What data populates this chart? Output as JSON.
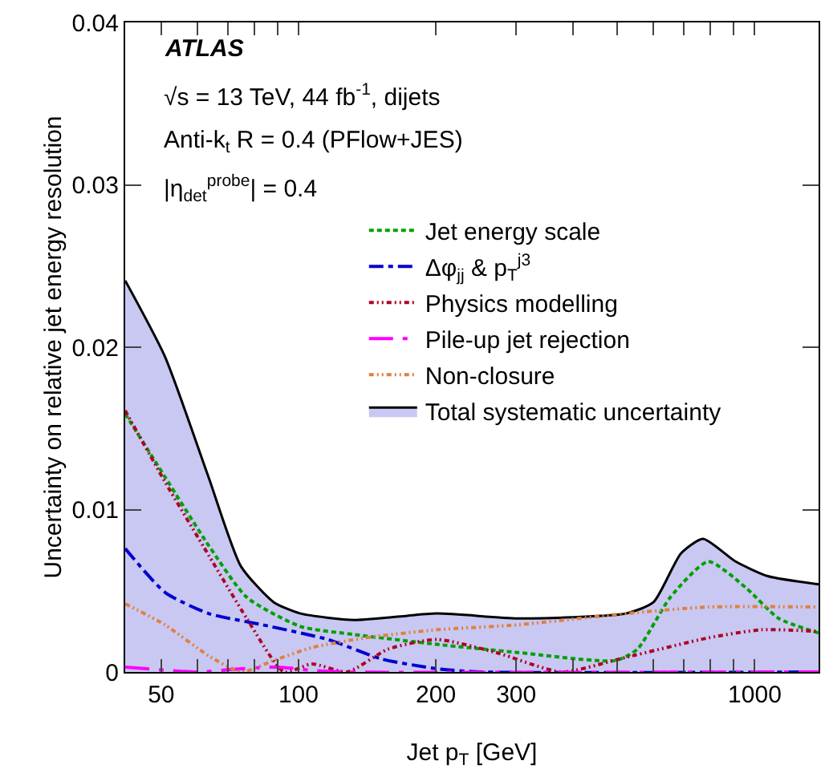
{
  "chart_data": {
    "type": "line",
    "xlabel": "Jet p$_{T}$ [GeV]",
    "ylabel": "Uncertainty on relative jet energy resolution",
    "annotations": [
      "ATLAS",
      "√s = 13 TeV, 44 fb$^{-1}$, dijets",
      "Anti-k$_{t}$ R = 0.4 (PFlow+JES)",
      "|η$_{det}$$^{probe}$| = 0.4"
    ],
    "log": "x",
    "xlim": [
      41.7,
      1380
    ],
    "xticks": [
      50,
      {
        "value": 60,
        "label": null
      },
      {
        "value": 70,
        "label": null
      },
      {
        "value": 80,
        "label": null
      },
      {
        "value": 90,
        "label": null
      },
      100,
      200,
      300,
      {
        "value": 400,
        "label": null
      },
      {
        "value": 500,
        "label": null
      },
      {
        "value": 600,
        "label": null
      },
      {
        "value": 700,
        "label": null
      },
      {
        "value": 800,
        "label": null
      },
      {
        "value": 900,
        "label": null
      },
      1000
    ],
    "ylim": [
      0,
      0.04
    ],
    "yticks": [
      0,
      0.01,
      0.02,
      0.03,
      0.04
    ],
    "grid": false,
    "legend": "top right",
    "marker": "none",
    "series": [
      {
        "name": "Total systematic uncertainty",
        "type": "area",
        "color": "#c8c8f2",
        "line_style": "solid",
        "x": [
          41.7,
          51,
          63.5,
          74.8,
          88.2,
          101,
          133,
          201,
          302,
          522,
          600,
          689,
          770,
          908,
          1068,
          1380
        ],
        "values": [
          0.0241,
          0.0194,
          0.012,
          0.0065,
          0.0043,
          0.0036,
          0.0032,
          0.0036,
          0.0033,
          0.0036,
          0.0043,
          0.0073,
          0.0082,
          0.0068,
          0.0059,
          0.0054
        ]
      },
      {
        "name": "Jet energy scale",
        "color": "#00a000",
        "line_style": "dotted",
        "x": [
          41.7,
          51,
          63.5,
          77,
          101,
          133,
          201,
          302,
          495,
          553,
          653,
          791,
          955,
          1128,
          1380
        ],
        "values": [
          0.0159,
          0.012,
          0.0078,
          0.0046,
          0.0028,
          0.0023,
          0.0017,
          0.0012,
          0.0007,
          0.0014,
          0.0046,
          0.0068,
          0.0052,
          0.0033,
          0.0024
        ]
      },
      {
        "name": "Δφ$_{jj}$ & p$_{T}$$^{j3}$",
        "color": "#0000d0",
        "line_style": "dashdot",
        "x": [
          41.7,
          51,
          63.5,
          83.5,
          116,
          152,
          201,
          250,
          1380
        ],
        "values": [
          0.0076,
          0.0049,
          0.0036,
          0.0029,
          0.002,
          0.0008,
          0.0002,
          0,
          0
        ]
      },
      {
        "name": "Physics modelling",
        "color": "#b00020",
        "line_style": "dashdotdot",
        "x": [
          41.7,
          51,
          63.5,
          77,
          93,
          107,
          128,
          157,
          201,
          271,
          377,
          522,
          791,
          1035,
          1380
        ],
        "values": [
          0.0161,
          0.0117,
          0.0072,
          0.0033,
          0,
          0.0005,
          0,
          0.0014,
          0.002,
          0.0012,
          0,
          0.0009,
          0.0021,
          0.0026,
          0.0025
        ]
      },
      {
        "name": "Pile-up jet rejection",
        "color": "#ff00ff",
        "line_style": "longdashdot",
        "x": [
          41.7,
          60,
          75,
          90,
          107,
          130,
          1380
        ],
        "values": [
          0.0003,
          0,
          0.0002,
          0.0003,
          0.0001,
          0,
          0
        ]
      },
      {
        "name": "Non-closure",
        "color": "#e08040",
        "line_style": "dashdotdot",
        "x": [
          41.7,
          51,
          63.5,
          75,
          88,
          107,
          140,
          201,
          302,
          522,
          791,
          1380
        ],
        "values": [
          0.0042,
          0.0029,
          0.001,
          0,
          0.0007,
          0.0015,
          0.0021,
          0.0026,
          0.0029,
          0.0036,
          0.004,
          0.004
        ]
      }
    ]
  }
}
